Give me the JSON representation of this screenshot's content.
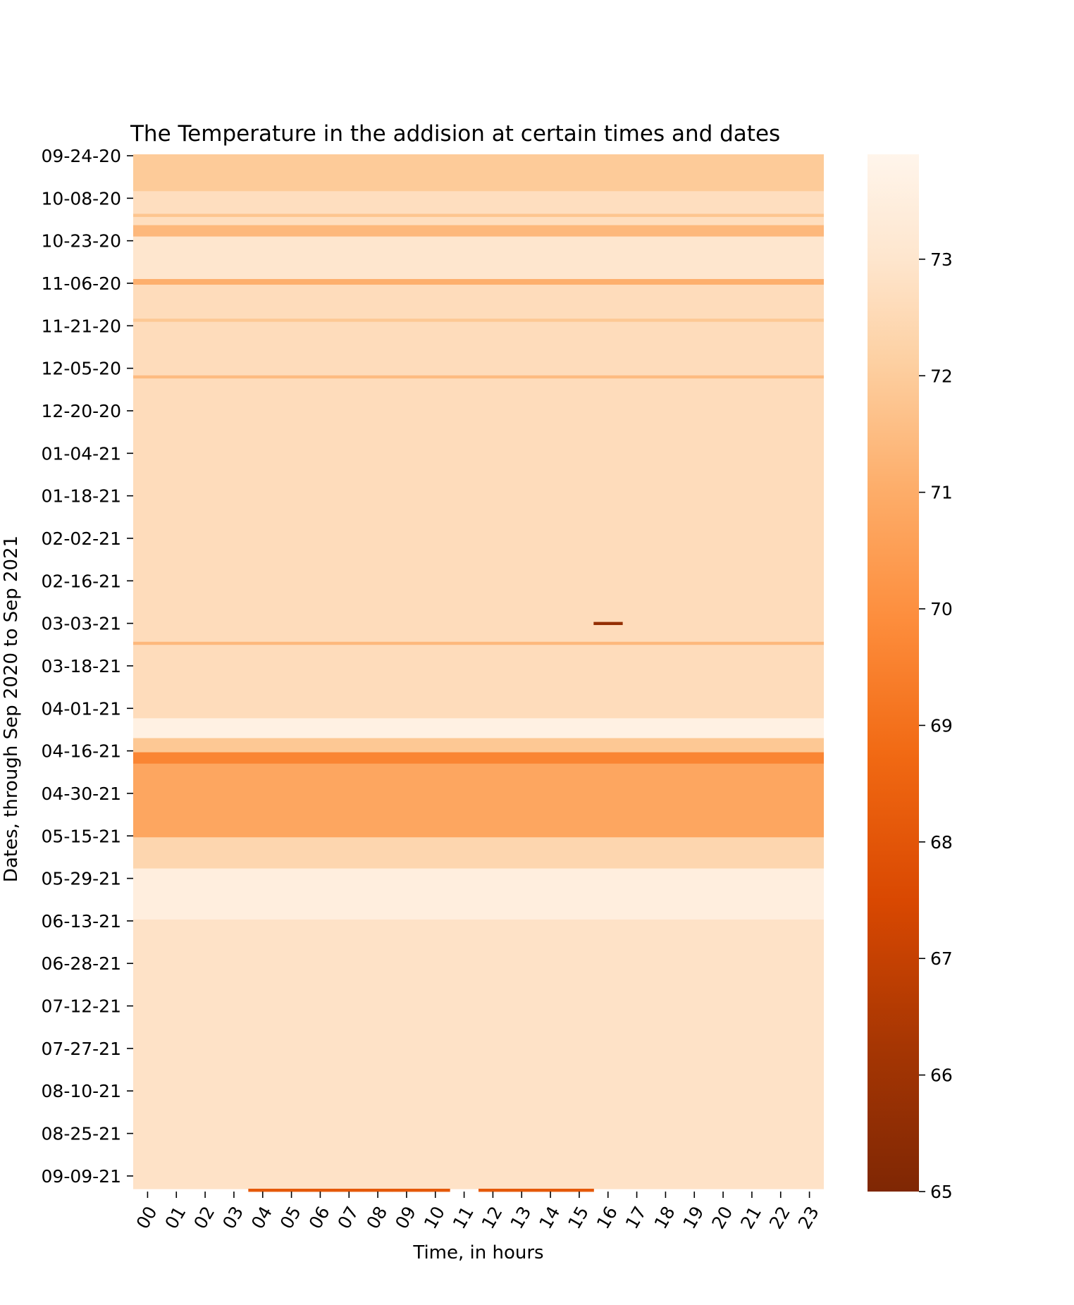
{
  "chart_data": {
    "type": "heatmap",
    "title": "The Temperature in the addision at certain times and dates",
    "xlabel": "Time, in hours",
    "ylabel": "Dates, through Sep 2020 to Sep 2021",
    "x_categories": [
      "00",
      "01",
      "02",
      "03",
      "04",
      "05",
      "06",
      "07",
      "08",
      "09",
      "10",
      "11",
      "12",
      "13",
      "14",
      "15",
      "16",
      "17",
      "18",
      "19",
      "20",
      "21",
      "22",
      "23"
    ],
    "y_tick_labels": [
      "09-24-20",
      "10-08-20",
      "10-23-20",
      "11-06-20",
      "11-21-20",
      "12-05-20",
      "12-20-20",
      "01-04-21",
      "01-18-21",
      "02-02-21",
      "02-16-21",
      "03-03-21",
      "03-18-21",
      "04-01-21",
      "04-16-21",
      "04-30-21",
      "05-15-21",
      "05-29-21",
      "06-13-21",
      "06-28-21",
      "07-12-21",
      "07-27-21",
      "08-10-21",
      "08-25-21",
      "09-09-21"
    ],
    "row_count": 366,
    "day_step_per_tick": 15,
    "colorbar": {
      "min": 65,
      "max": 73.9,
      "ticks": [
        65,
        66,
        67,
        68,
        69,
        70,
        71,
        72,
        73
      ],
      "colormap": "Oranges_r",
      "color_stops": [
        "#7f2704",
        "#a63603",
        "#d94801",
        "#f16913",
        "#fd8d3c",
        "#fdae6b",
        "#fdd0a2",
        "#fee6ce",
        "#fff5eb"
      ]
    },
    "row_profile": [
      {
        "from": "09-24-20",
        "to": "10-06-20",
        "value": 71.5
      },
      {
        "from": "10-07-20",
        "to": "10-18-20",
        "value": 72.4
      },
      {
        "from": "10-19-20",
        "to": "10-22-20",
        "value": 70.9
      },
      {
        "from": "10-23-20",
        "to": "11-06-20",
        "value": 72.8
      },
      {
        "from": "11-07-20",
        "to": "11-08-20",
        "value": 70.6
      },
      {
        "from": "11-09-20",
        "to": "04-10-21",
        "value": 72.3
      },
      {
        "from": "04-11-21",
        "to": "04-17-21",
        "value": 73.6
      },
      {
        "from": "04-18-21",
        "to": "04-22-21",
        "value": 71.4
      },
      {
        "from": "04-23-21",
        "to": "04-26-21",
        "value": 69.2
      },
      {
        "from": "04-27-21",
        "to": "05-22-21",
        "value": 70.3
      },
      {
        "from": "05-23-21",
        "to": "06-02-21",
        "value": 72.0
      },
      {
        "from": "06-03-21",
        "to": "06-20-21",
        "value": 73.4
      },
      {
        "from": "06-21-21",
        "to": "09-23-21",
        "value": 72.6
      }
    ],
    "thin_bands": [
      {
        "date": "10-15-20",
        "value": 71.3
      },
      {
        "date": "11-21-20",
        "value": 71.4
      },
      {
        "date": "12-11-20",
        "value": 71.0
      },
      {
        "date": "03-15-21",
        "value": 70.9
      }
    ],
    "outliers": [
      {
        "date": "03-08-21",
        "hour": "16",
        "value": 65.6
      },
      {
        "date": "09-24-21",
        "hours": [
          "04",
          "05",
          "06",
          "07",
          "08",
          "09",
          "10",
          "12",
          "13",
          "14",
          "15"
        ],
        "value": 67.8
      }
    ]
  }
}
